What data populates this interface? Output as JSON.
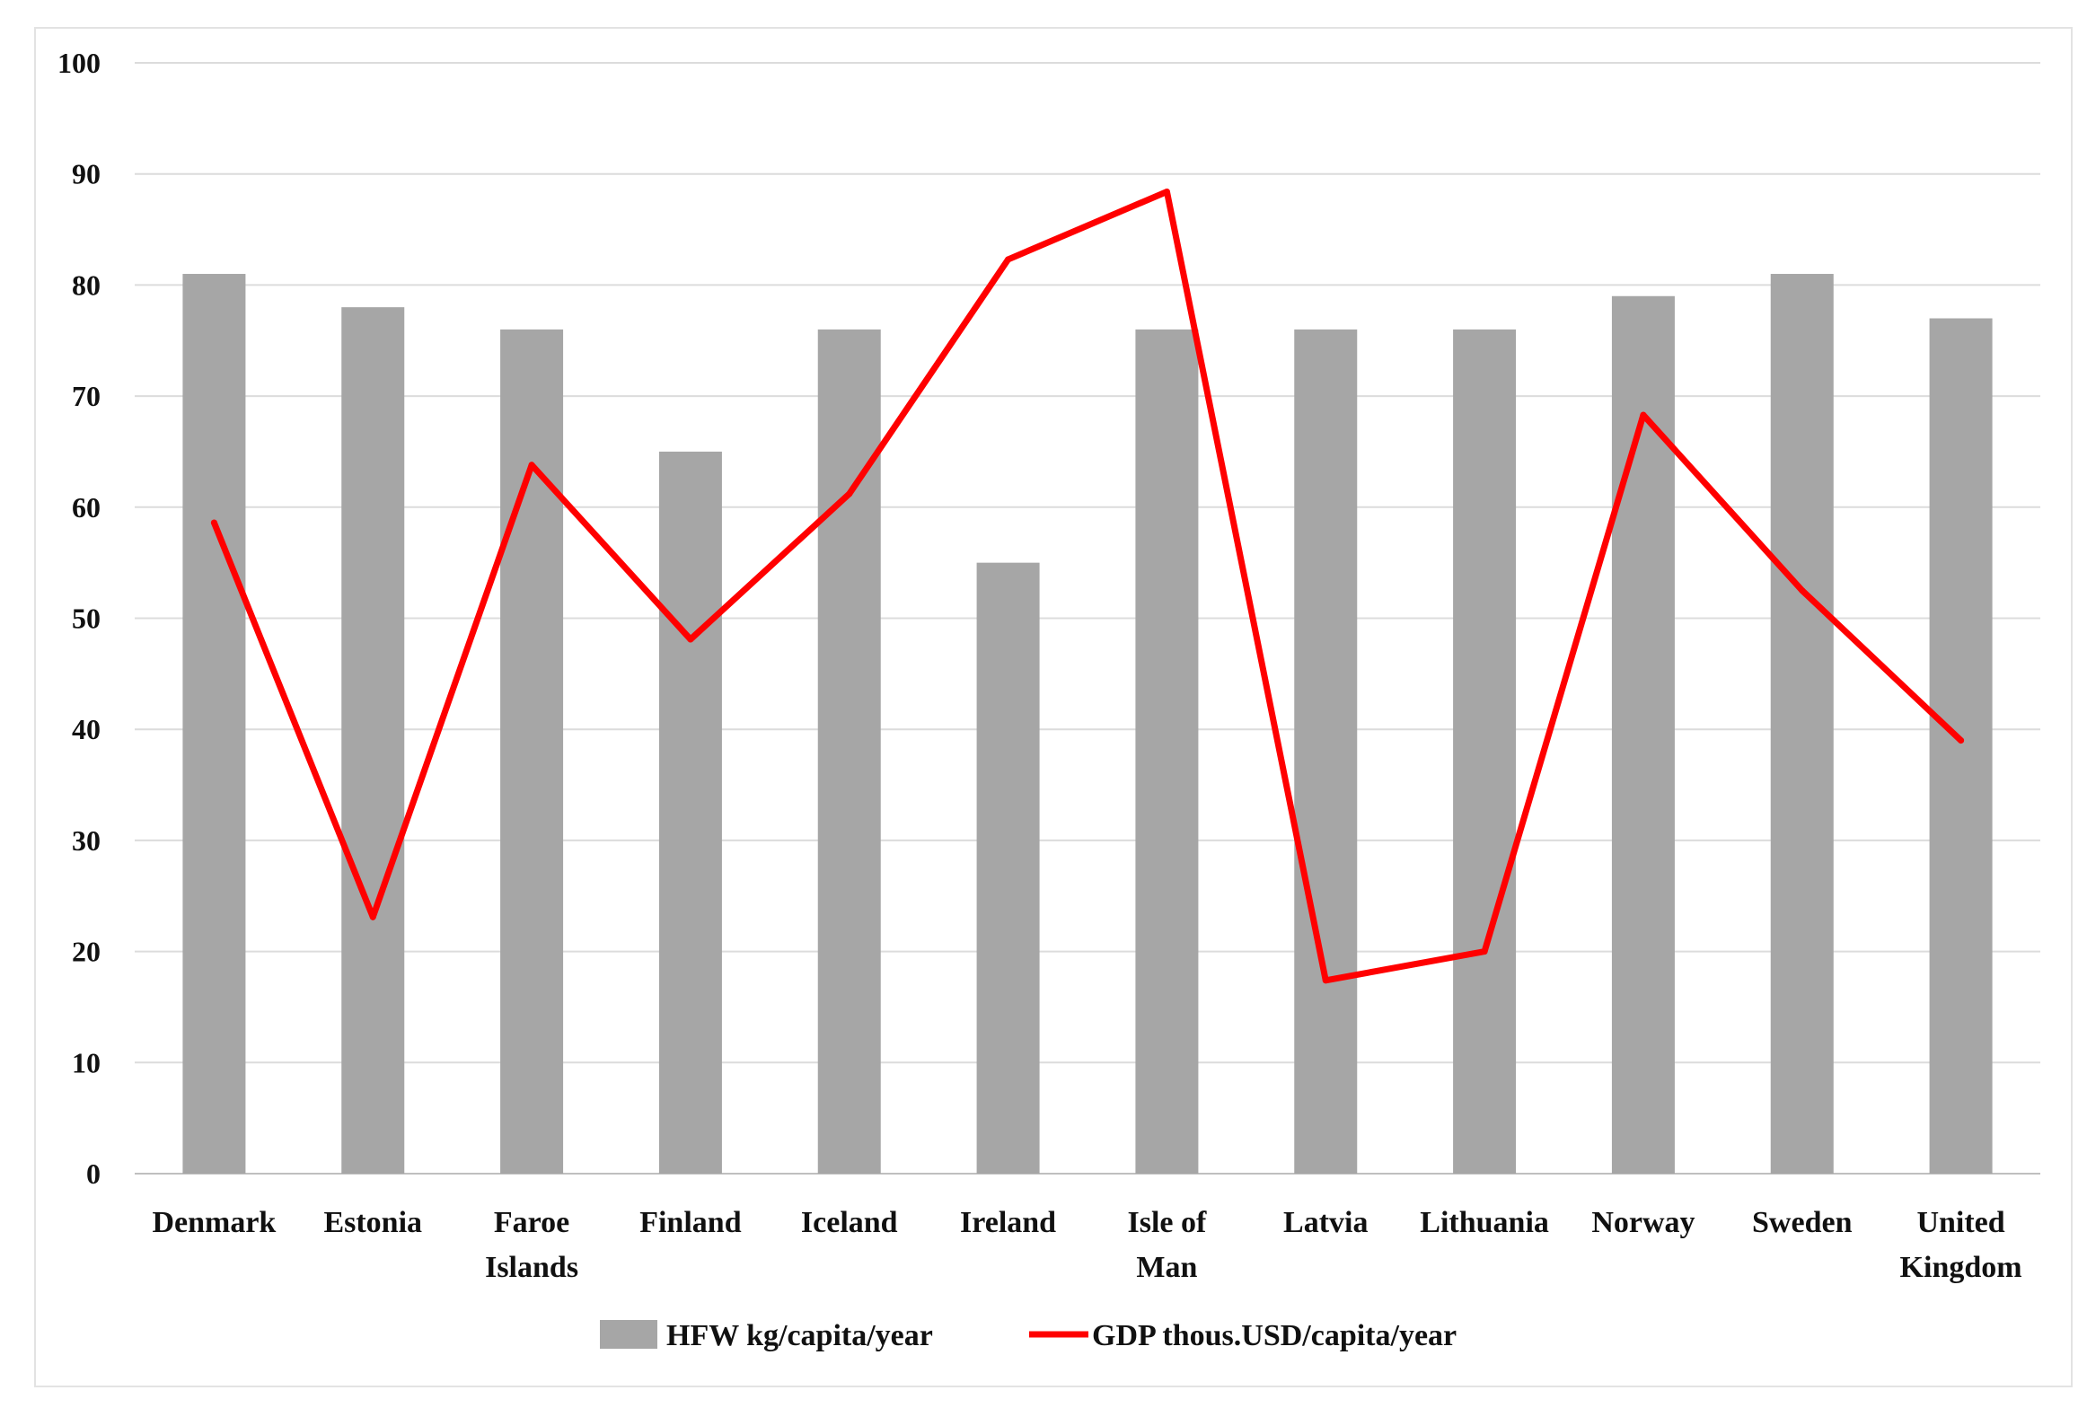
{
  "chart_data": {
    "type": "bar",
    "categories": [
      [
        "Denmark"
      ],
      [
        "Estonia"
      ],
      [
        "Faroe",
        "Islands"
      ],
      [
        "Finland"
      ],
      [
        "Iceland"
      ],
      [
        "Ireland"
      ],
      [
        "Isle of",
        "Man"
      ],
      [
        "Latvia"
      ],
      [
        "Lithuania"
      ],
      [
        "Norway"
      ],
      [
        "Sweden"
      ],
      [
        "United",
        "Kingdom"
      ]
    ],
    "series": [
      {
        "name": "HFW kg/capita/year",
        "type": "bar",
        "color": "#a6a6a6",
        "values": [
          81,
          78,
          76,
          65,
          76,
          55,
          76,
          76,
          76,
          79,
          81,
          77
        ]
      },
      {
        "name": "GDP thous.USD/capita/year",
        "type": "line",
        "color": "#ff0000",
        "values": [
          58.6,
          23.1,
          63.8,
          48.1,
          61.2,
          82.3,
          88.4,
          17.4,
          20.0,
          68.3,
          52.5,
          39.0
        ]
      }
    ],
    "ylim": [
      0,
      100
    ],
    "yticks": [
      "0",
      "10",
      "20",
      "30",
      "40",
      "50",
      "60",
      "70",
      "80",
      "90",
      "100"
    ],
    "grid": true,
    "legend_position": "bottom"
  }
}
